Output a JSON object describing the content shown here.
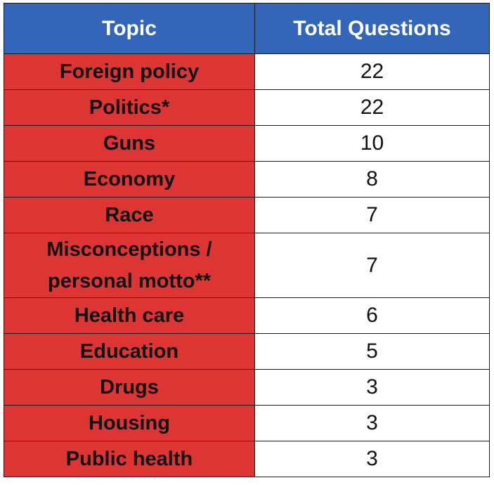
{
  "table": {
    "headers": {
      "topic": "Topic",
      "total": "Total Questions"
    },
    "rows": [
      {
        "topic": "Foreign policy",
        "total": "22"
      },
      {
        "topic": "Politics*",
        "total": "22"
      },
      {
        "topic": "Guns",
        "total": "10"
      },
      {
        "topic": "Economy",
        "total": "8"
      },
      {
        "topic": "Race",
        "total": "7"
      },
      {
        "topic": "Misconceptions / personal motto**",
        "total": "7"
      },
      {
        "topic": "Health care",
        "total": "6"
      },
      {
        "topic": "Education",
        "total": "5"
      },
      {
        "topic": "Drugs",
        "total": "3"
      },
      {
        "topic": "Housing",
        "total": "3"
      },
      {
        "topic": "Public health",
        "total": "3"
      }
    ]
  },
  "colors": {
    "header_bg": "#3366b8",
    "topic_bg": "#dd3434",
    "border": "#1a1a1a"
  }
}
